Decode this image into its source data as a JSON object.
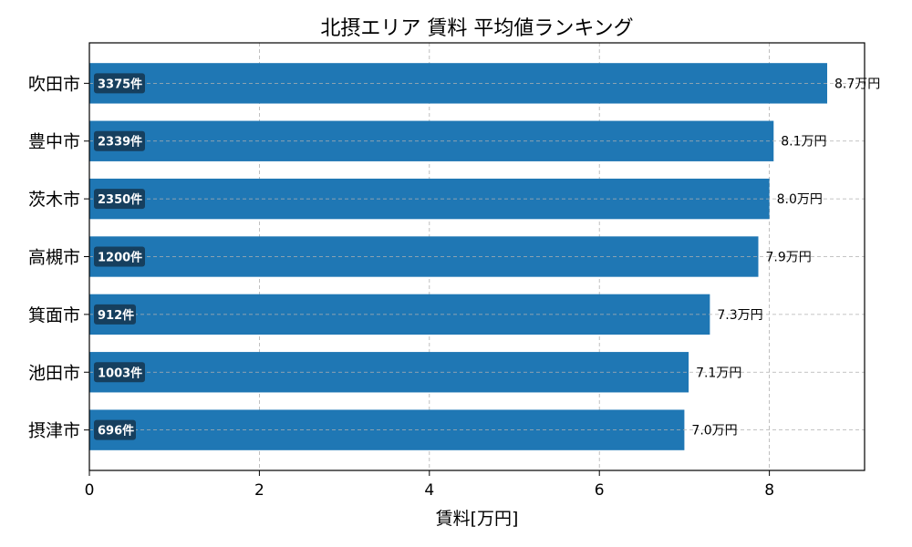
{
  "chart_data": {
    "type": "bar",
    "orientation": "horizontal",
    "title": "北摂エリア 賃料 平均値ランキング",
    "xlabel": "賃料[万円]",
    "ylabel": "",
    "xlim": [
      0,
      9.12
    ],
    "xticks": [
      "0",
      "2",
      "4",
      "6",
      "8"
    ],
    "grid": true,
    "categories": [
      "吹田市",
      "豊中市",
      "茨木市",
      "高槻市",
      "箕面市",
      "池田市",
      "摂津市"
    ],
    "values": [
      8.68,
      8.05,
      8.0,
      7.87,
      7.3,
      7.05,
      7.0
    ],
    "value_labels": [
      "8.7万円",
      "8.1万円",
      "8.0万円",
      "7.9万円",
      "7.3万円",
      "7.1万円",
      "7.0万円"
    ],
    "count_labels": [
      "3375件",
      "2339件",
      "2350件",
      "1200件",
      "912件",
      "1003件",
      "696件"
    ],
    "colors": {
      "bar": "#1f77b4",
      "badge": "#163f5e",
      "grid": "#b0b0b0"
    }
  }
}
